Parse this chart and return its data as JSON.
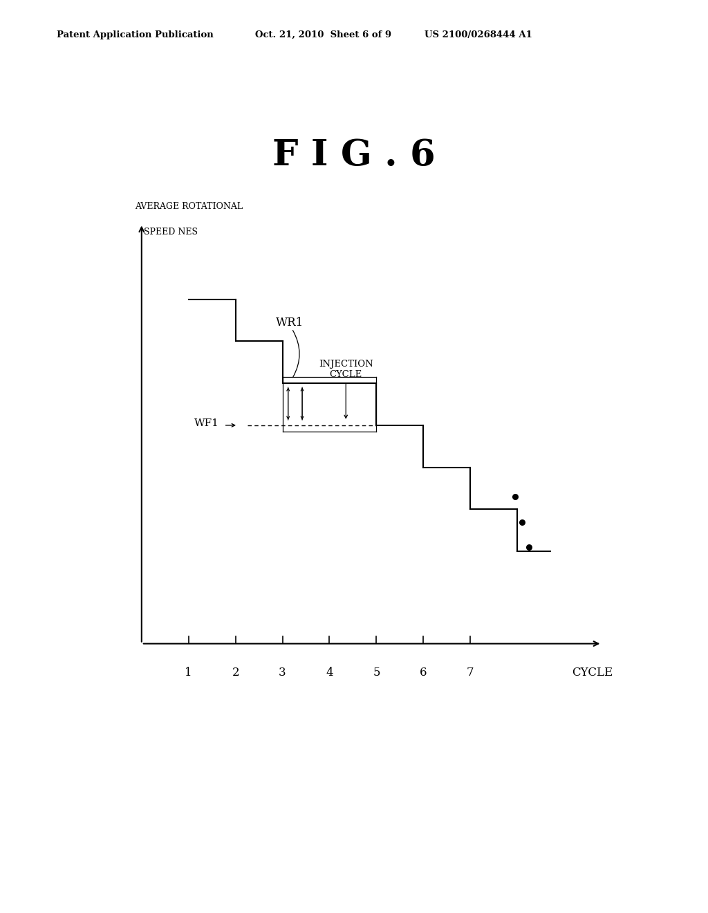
{
  "fig_title": "F I G . 6",
  "header_left": "Patent Application Publication",
  "header_center": "Oct. 21, 2010  Sheet 6 of 9",
  "header_right": "US 2100/0268444 A1",
  "xlabel": "CYCLE",
  "x_ticks": [
    1,
    2,
    3,
    4,
    5,
    6,
    7
  ],
  "background_color": "#ffffff",
  "line_color": "#000000",
  "wf1_label": "WF1",
  "wr1_label": "WR1",
  "injection_label": "INJECTION\nCYCLE"
}
